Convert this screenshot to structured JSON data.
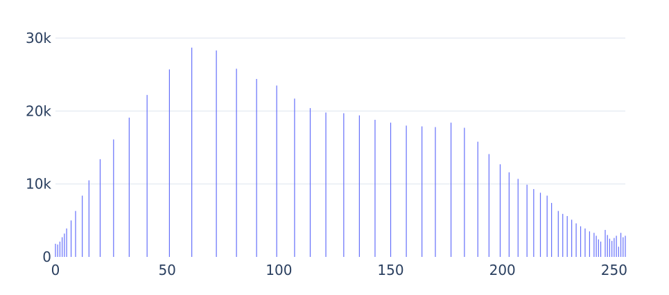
{
  "chart_data": {
    "type": "bar",
    "title": "",
    "xlabel": "",
    "ylabel": "",
    "xlim": [
      0,
      255
    ],
    "ylim": [
      0,
      30000
    ],
    "grid": true,
    "legend": "none",
    "bar_color": "#636efa",
    "grid_color": "#e7ecf3",
    "text_color": "#2a3f5f",
    "x_ticks": [
      {
        "value": 0,
        "label": "0"
      },
      {
        "value": 50,
        "label": "50"
      },
      {
        "value": 100,
        "label": "100"
      },
      {
        "value": 150,
        "label": "150"
      },
      {
        "value": 200,
        "label": "200"
      },
      {
        "value": 250,
        "label": "250"
      }
    ],
    "y_ticks": [
      {
        "value": 0,
        "label": "0"
      },
      {
        "value": 10000,
        "label": "10k"
      },
      {
        "value": 20000,
        "label": "20k"
      },
      {
        "value": 30000,
        "label": "30k"
      }
    ],
    "x": [
      0,
      1,
      2,
      3,
      4,
      5,
      7,
      9,
      12,
      15,
      20,
      26,
      33,
      41,
      51,
      61,
      72,
      81,
      90,
      99,
      107,
      114,
      121,
      129,
      136,
      143,
      150,
      157,
      164,
      170,
      177,
      183,
      189,
      194,
      199,
      203,
      207,
      211,
      214,
      217,
      220,
      222,
      225,
      227,
      229,
      231,
      233,
      235,
      237,
      239,
      241,
      242,
      243,
      244,
      246,
      247,
      248,
      249,
      250,
      251,
      252,
      253,
      254,
      255
    ],
    "values": [
      1800,
      1700,
      2100,
      2700,
      3200,
      3900,
      5000,
      6300,
      8400,
      10500,
      13400,
      16100,
      19100,
      22200,
      25700,
      28700,
      28300,
      25800,
      24400,
      23500,
      21700,
      20400,
      19800,
      19700,
      19400,
      18800,
      18400,
      18000,
      17900,
      17800,
      18400,
      17700,
      15800,
      14100,
      12700,
      11600,
      10700,
      9900,
      9300,
      8800,
      8400,
      7400,
      6300,
      5900,
      5600,
      5100,
      4600,
      4200,
      3900,
      3500,
      3300,
      2900,
      2400,
      2100,
      3700,
      3000,
      2500,
      2200,
      2600,
      2900,
      1400,
      3300,
      2700,
      2900
    ]
  }
}
